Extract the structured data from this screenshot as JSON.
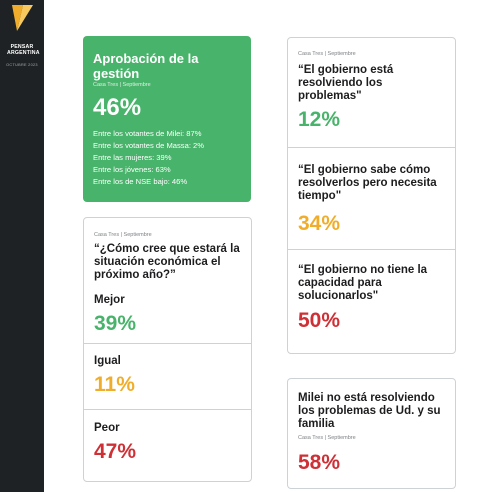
{
  "brand": {
    "name": "PENSAR ARGENTINA",
    "date": "OCTUBRE 2023"
  },
  "colors": {
    "sidebar": "#1e2224",
    "logo": "#f0ad2b",
    "green": "#48b36a",
    "yellow": "#f0ad2b",
    "red": "#cf3036"
  },
  "approval": {
    "title": "Aprobación de la gestión",
    "source": "Casa Tres | Septiembre",
    "value": "46%",
    "breakdown": [
      "Entre los votantes de Milei: 87%",
      "Entre los votantes de Massa: 2%",
      "Entre las mujeres: 39%",
      "Entre los jóvenes: 63%",
      "Entre los de NSE bajo: 46%"
    ]
  },
  "economy": {
    "source": "Casa Tres | Septiembre",
    "question": "“¿Cómo cree que estará la situación económica el próximo año?”",
    "options": [
      {
        "label": "Mejor",
        "value": "39%"
      },
      {
        "label": "Igual",
        "value": "11%"
      },
      {
        "label": "Peor",
        "value": "47%"
      }
    ]
  },
  "government": {
    "source": "Casa Tres | Septiembre",
    "items": [
      {
        "quote": "“El gobierno está resolviendo los problemas\"",
        "value": "12%"
      },
      {
        "quote": "“El gobierno sabe cómo resolverlos pero necesita tiempo\"",
        "value": "34%"
      },
      {
        "quote": "“El gobierno no tiene la capacidad para solucionarlos\"",
        "value": "50%"
      }
    ]
  },
  "milei": {
    "statement": "Milei no está resolviendo los problemas de Ud. y su familia",
    "source": "Casa Tres | Septiembre",
    "value": "58%"
  }
}
